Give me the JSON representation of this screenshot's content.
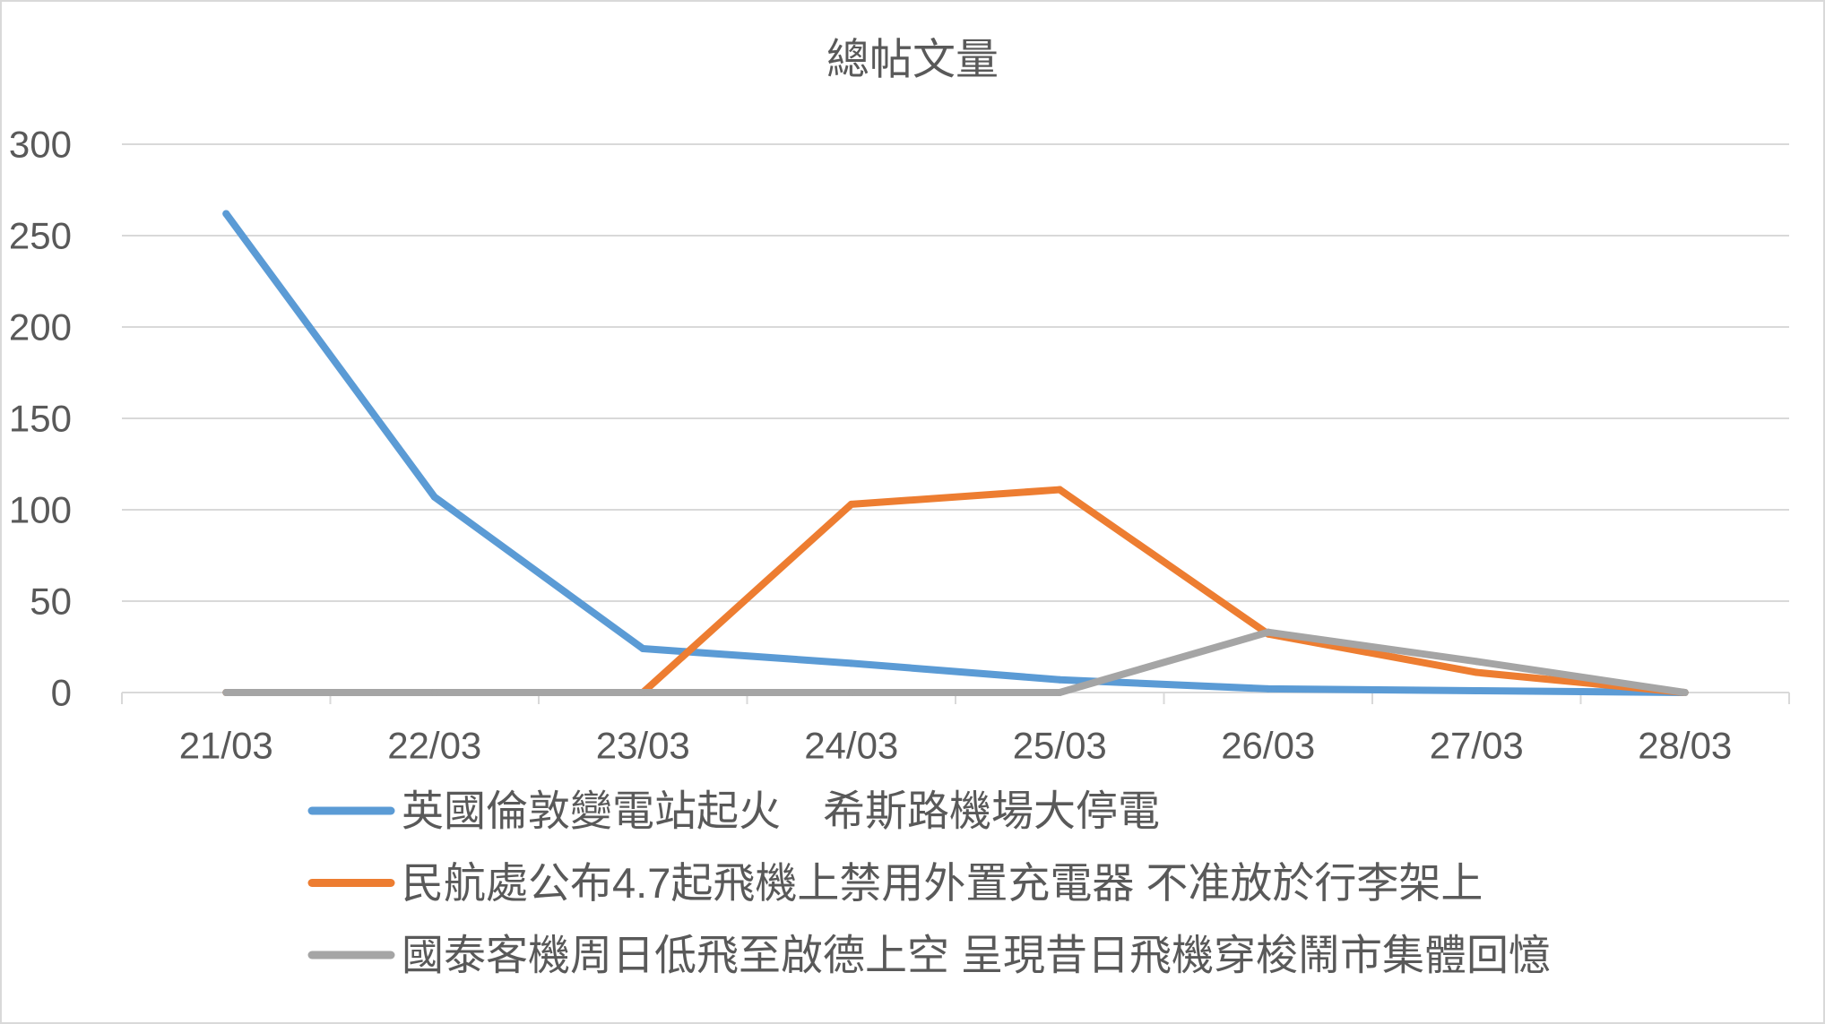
{
  "chart_data": {
    "type": "line",
    "title": "總帖文量",
    "categories": [
      "21/03",
      "22/03",
      "23/03",
      "24/03",
      "25/03",
      "26/03",
      "27/03",
      "28/03"
    ],
    "yticks": [
      0,
      50,
      100,
      150,
      200,
      250,
      300
    ],
    "ylim": [
      0,
      300
    ],
    "grid": true,
    "legend_position": "bottom",
    "series": [
      {
        "name": "英國倫敦變電站起火　希斯路機場大停電",
        "color": "#5B9BD5",
        "values": [
          262,
          107,
          24,
          16,
          7,
          2,
          1,
          0
        ]
      },
      {
        "name": "民航處公布4.7起飛機上禁用外置充電器 不准放於行李架上",
        "color": "#ED7D31",
        "values": [
          0,
          0,
          0,
          103,
          111,
          32,
          11,
          0
        ]
      },
      {
        "name": "國泰客機周日低飛至啟德上空 呈現昔日飛機穿梭鬧市集體回憶",
        "color": "#A5A5A5",
        "values": [
          0,
          0,
          0,
          0,
          0,
          33,
          17,
          0
        ]
      }
    ]
  }
}
